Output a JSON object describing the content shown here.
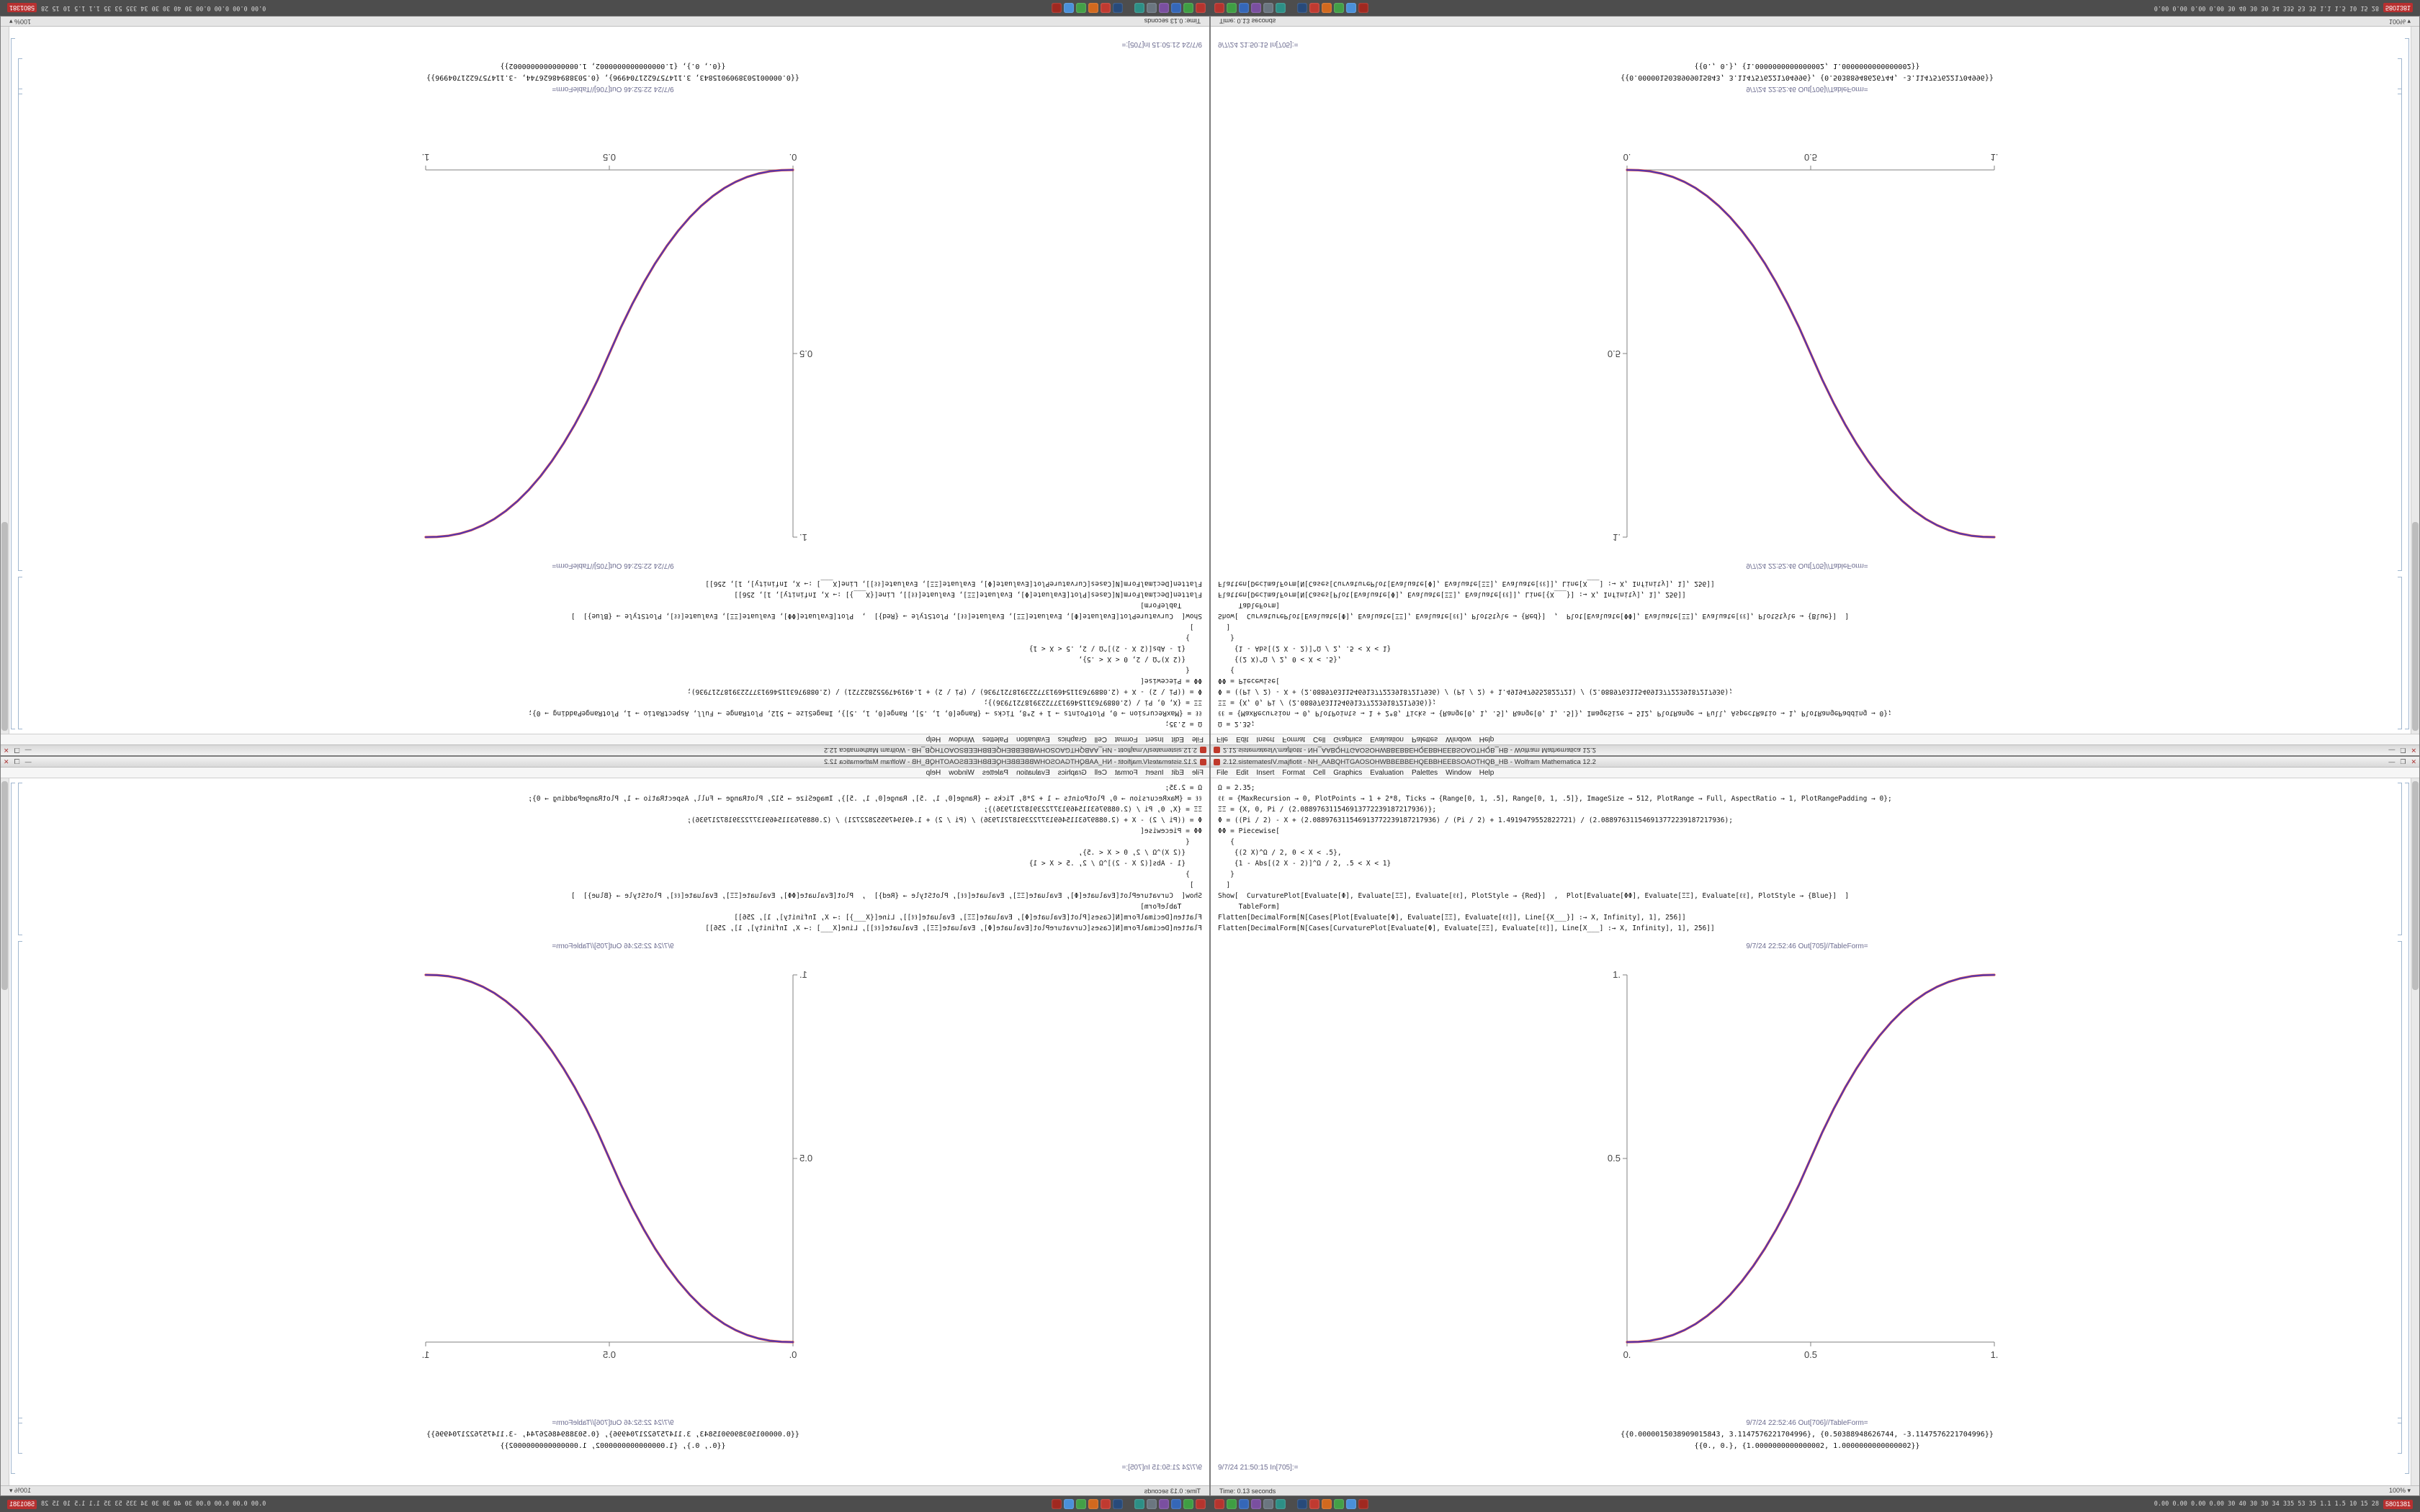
{
  "window": {
    "title": "2.12.sistemateslV.majfiotit - NH_AABQHTGAOSOHWBBEBBEHQEBBHEEBSOAOTHQB_HB - Wolfram Mathematica 12.2",
    "controls": {
      "minimize": "—",
      "maximize": "❐",
      "close": "✕"
    },
    "menu": [
      "File",
      "Edit",
      "Insert",
      "Format",
      "Cell",
      "Graphics",
      "Evaluation",
      "Palettes",
      "Window",
      "Help"
    ],
    "code_lines": [
      "Ω = 2.35;",
      "ℓℓ = {MaxRecursion → 0, PlotPoints → 1 + 2*8, Ticks → {Range[0, 1, .5], Range[0, 1, .5]}, ImageSize → 512, PlotRange → Full, AspectRatio → 1, PlotRangePadding → 0};",
      "ΞΞ = {X, 0, Pi / (2.088976311546913772239187217936)};",
      "Φ = ((Pi / 2) - X + (2.088976311546913772239187217936) / (Pi / 2) + 1.4919479552822721) / (2.088976311546913772239187217936);",
      "ΦΦ = Piecewise[",
      "   {",
      "    {(2 X)^Ω / 2, 0 < X < .5},",
      "    {1 - Abs[(2 X - 2)]^Ω / 2, .5 < X < 1}",
      "   }",
      "  ]",
      "Show[  CurvaturePlot[Evaluate[Φ], Evaluate[ΞΞ], Evaluate[ℓℓ], PlotStyle → {Red}]  ,  Plot[Evaluate[ΦΦ], Evaluate[ΞΞ], Evaluate[ℓℓ], PlotStyle → {Blue}]  ]",
      "     TableForm]",
      "Flatten[DecimalForm[N[Cases[Plot[Evaluate[Φ], Evaluate[ΞΞ], Evaluate[ℓℓ]], Line[{X___}] :→ X, Infinity], 1], 256]]",
      "Flatten[DecimalForm[N[Cases[CurvaturePlot[Evaluate[Φ], Evaluate[ΞΞ], Evaluate[ℓℓ]], Line[X___] :→ X, Infinity], 1], 256]]"
    ],
    "out1_label": "9/7/24 22:52:46 Out[705]//TableForm=",
    "out2_label": "9/7/24 22:52:46 Out[706]//TableForm=",
    "out2_line1": "{{0.0000015038909015843, 3.1147576221704996}, {0.50388948626744, -3.1147576221704996}}",
    "out2_line2": "{{0., 0.}, {1.0000000000000002, 1.0000000000000002}}",
    "in_next_label": "9/7/24 21:50:15 In[705]:=",
    "status_left": "Time: 0.13 seconds",
    "status_zoom": "100% ▾"
  },
  "taskbar": {
    "app_icons_group1": [
      {
        "name": "file-manager-icon",
        "color": "#b5342e"
      },
      {
        "name": "text-editor-icon",
        "color": "#3f9e43"
      },
      {
        "name": "web-browser-icon",
        "color": "#3567b8"
      },
      {
        "name": "image-viewer-icon",
        "color": "#7a4fa0"
      },
      {
        "name": "terminal-icon",
        "color": "#6b7680"
      },
      {
        "name": "media-player-icon",
        "color": "#2d8f86"
      }
    ],
    "app_icons_group2": [
      {
        "name": "mail-icon",
        "color": "#274a7a"
      },
      {
        "name": "mathematica-icon",
        "color": "#c03a30"
      },
      {
        "name": "pdf-viewer-icon",
        "color": "#d2691e"
      },
      {
        "name": "spreadsheet-icon",
        "color": "#43a047"
      },
      {
        "name": "settings-icon",
        "color": "#4a90d9"
      },
      {
        "name": "system-monitor-icon",
        "color": "#a02820"
      }
    ],
    "tray_text": "0.00 0.00 0.00 0.00  30 40 30 30 34 335 53 35  1.1 1.5 10 15 28",
    "tray_badge": "5801381"
  },
  "chart_data": {
    "type": "line",
    "title": "",
    "xlabel": "",
    "ylabel": "",
    "xlim": [
      0,
      1
    ],
    "ylim": [
      0,
      1
    ],
    "xticks": [
      0,
      0.5,
      1
    ],
    "yticks": [
      0,
      0.5,
      1
    ],
    "xtick_labels": [
      "0.",
      "0.5",
      "1."
    ],
    "ytick_labels": [
      "0.",
      "0.5",
      "1."
    ],
    "grid": false,
    "legend": "none",
    "image_size": 512,
    "aspect_ratio": 1,
    "x": [
      0,
      0.03125,
      0.0625,
      0.09375,
      0.125,
      0.15625,
      0.1875,
      0.21875,
      0.25,
      0.28125,
      0.3125,
      0.34375,
      0.375,
      0.40625,
      0.4375,
      0.46875,
      0.5,
      0.53125,
      0.5625,
      0.59375,
      0.625,
      0.65625,
      0.6875,
      0.71875,
      0.75,
      0.78125,
      0.8125,
      0.84375,
      0.875,
      0.90625,
      0.9375,
      0.96875,
      1
    ],
    "series": [
      {
        "name": "CurvaturePlot[Φ] (Red)",
        "color": "#cc2b2b",
        "values": [
          0,
          0.0007,
          0.0038,
          0.0098,
          0.0193,
          0.0325,
          0.0499,
          0.0717,
          0.0981,
          0.1293,
          0.1657,
          0.2073,
          0.2543,
          0.307,
          0.3653,
          0.4296,
          0.5,
          0.5704,
          0.6347,
          0.693,
          0.7457,
          0.7927,
          0.8343,
          0.8707,
          0.9019,
          0.9283,
          0.9501,
          0.9675,
          0.9807,
          0.9902,
          0.9962,
          0.9993,
          1
        ]
      },
      {
        "name": "Plot[ΦΦ] (Blue)",
        "color": "#3333cc",
        "values": [
          0,
          0.0007,
          0.0038,
          0.0098,
          0.0193,
          0.0325,
          0.0499,
          0.0717,
          0.0981,
          0.1293,
          0.1657,
          0.2073,
          0.2543,
          0.307,
          0.3653,
          0.4296,
          0.5,
          0.5704,
          0.6347,
          0.693,
          0.7457,
          0.7927,
          0.8343,
          0.8707,
          0.9019,
          0.9283,
          0.9501,
          0.9675,
          0.9807,
          0.9902,
          0.9962,
          0.9993,
          1
        ]
      }
    ]
  }
}
